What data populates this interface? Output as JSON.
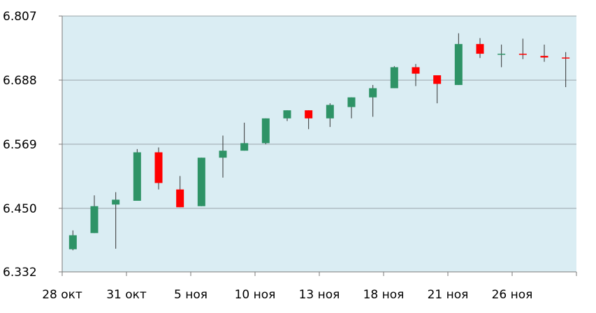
{
  "chart_data": {
    "type": "candlestick",
    "title": "",
    "xlabel": "",
    "ylabel": "",
    "ylim": [
      6.332,
      6.807
    ],
    "y_ticks": [
      "6.807",
      "6.688",
      "6.569",
      "6.450",
      "6.332"
    ],
    "y_tick_values": [
      6.807,
      6.688,
      6.569,
      6.45,
      6.332
    ],
    "x_tick_labels": [
      "28 окт",
      "31 окт",
      "5 ноя",
      "10 ноя",
      "13 ноя",
      "18 ноя",
      "21 ноя",
      "26 ноя"
    ],
    "x_tick_label_after_candle": [
      0,
      3,
      6,
      9,
      12,
      15,
      18,
      21
    ],
    "grid": "horizontal",
    "legend": "none",
    "colors": {
      "background": "#daedf3",
      "up": "#2e9366",
      "down": "#ff0000",
      "grid": "#9aa4aa",
      "axis": "#7a7a7a"
    },
    "candles": [
      {
        "open": 6.374,
        "high": 6.409,
        "low": 6.372,
        "close": 6.4
      },
      {
        "open": 6.404,
        "high": 6.474,
        "low": 6.404,
        "close": 6.454
      },
      {
        "open": 6.457,
        "high": 6.48,
        "low": 6.375,
        "close": 6.466
      },
      {
        "open": 6.464,
        "high": 6.56,
        "low": 6.464,
        "close": 6.554
      },
      {
        "open": 6.554,
        "high": 6.563,
        "low": 6.485,
        "close": 6.497
      },
      {
        "open": 6.485,
        "high": 6.51,
        "low": 6.452,
        "close": 6.452
      },
      {
        "open": 6.454,
        "high": 6.544,
        "low": 6.454,
        "close": 6.544
      },
      {
        "open": 6.544,
        "high": 6.585,
        "low": 6.507,
        "close": 6.557
      },
      {
        "open": 6.557,
        "high": 6.609,
        "low": 6.557,
        "close": 6.571
      },
      {
        "open": 6.571,
        "high": 6.617,
        "low": 6.569,
        "close": 6.617
      },
      {
        "open": 6.617,
        "high": 6.632,
        "low": 6.612,
        "close": 6.632
      },
      {
        "open": 6.632,
        "high": 6.632,
        "low": 6.597,
        "close": 6.617
      },
      {
        "open": 6.617,
        "high": 6.645,
        "low": 6.601,
        "close": 6.642
      },
      {
        "open": 6.638,
        "high": 6.656,
        "low": 6.617,
        "close": 6.656
      },
      {
        "open": 6.656,
        "high": 6.679,
        "low": 6.62,
        "close": 6.673
      },
      {
        "open": 6.673,
        "high": 6.714,
        "low": 6.673,
        "close": 6.712
      },
      {
        "open": 6.712,
        "high": 6.718,
        "low": 6.677,
        "close": 6.7
      },
      {
        "open": 6.697,
        "high": 6.697,
        "low": 6.645,
        "close": 6.681
      },
      {
        "open": 6.679,
        "high": 6.775,
        "low": 6.679,
        "close": 6.755
      },
      {
        "open": 6.755,
        "high": 6.766,
        "low": 6.729,
        "close": 6.737
      },
      {
        "open": 6.737,
        "high": 6.754,
        "low": 6.712,
        "close": 6.737
      },
      {
        "open": 6.737,
        "high": 6.765,
        "low": 6.727,
        "close": 6.735
      },
      {
        "open": 6.733,
        "high": 6.754,
        "low": 6.722,
        "close": 6.73
      },
      {
        "open": 6.73,
        "high": 6.74,
        "low": 6.675,
        "close": 6.729
      }
    ]
  }
}
